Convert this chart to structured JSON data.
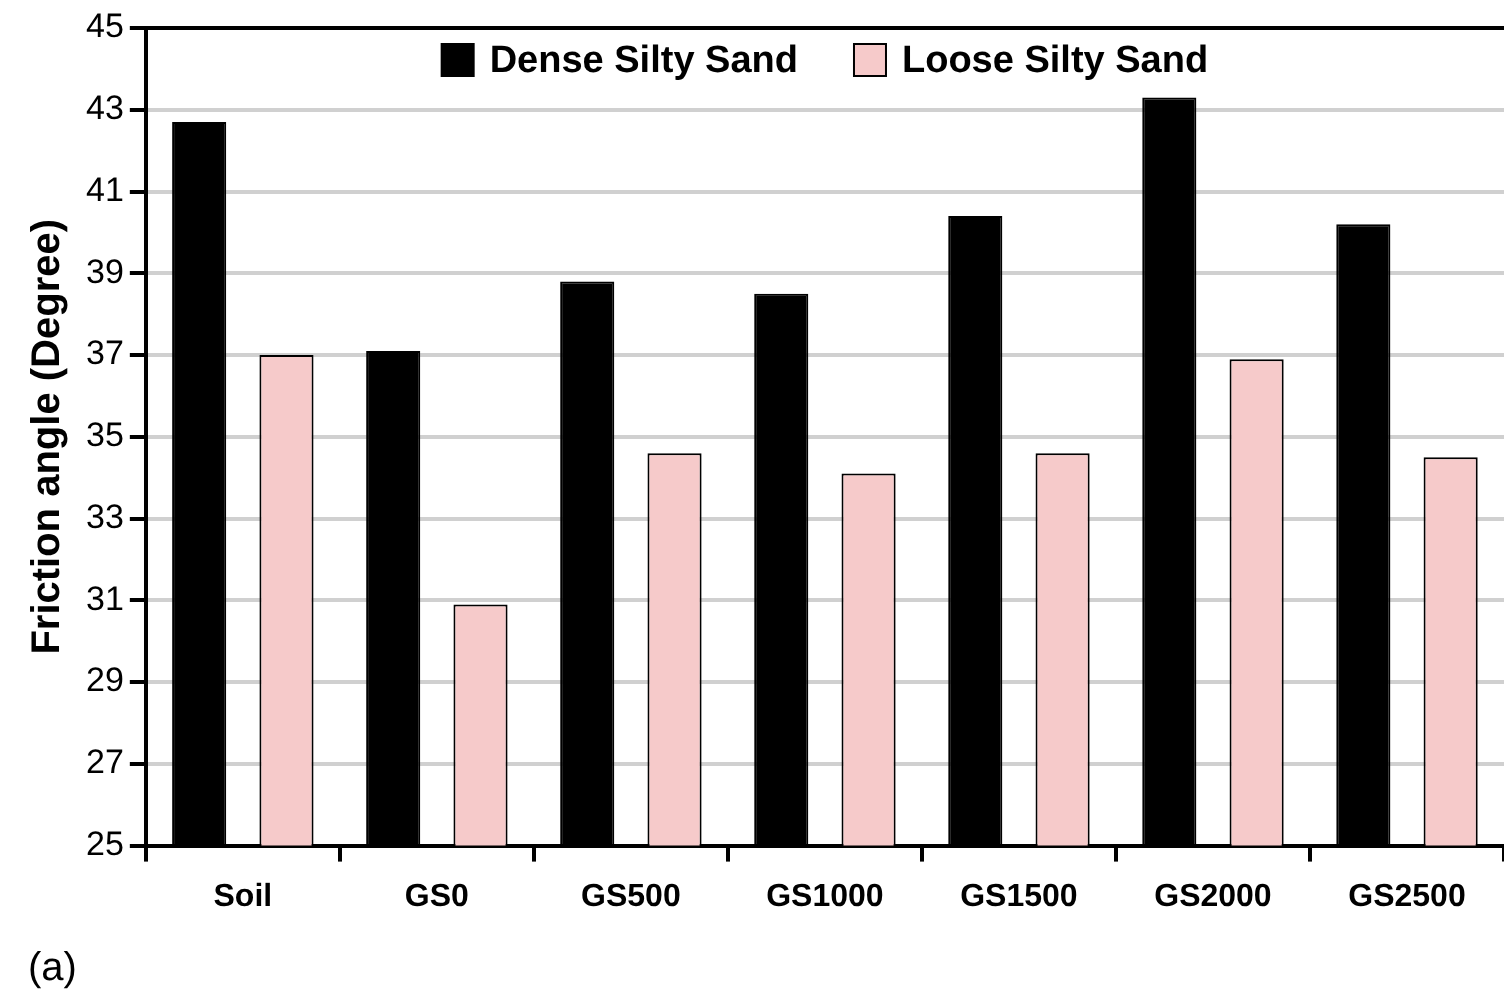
{
  "chart_data": {
    "type": "bar",
    "ylabel": "Friction angle (Degree)",
    "categories": [
      "Soil",
      "GS0",
      "GS500",
      "GS1000",
      "GS1500",
      "GS2000",
      "GS2500"
    ],
    "series": [
      {
        "name": "Dense Silty Sand",
        "color": "#000000",
        "values": [
          42.7,
          37.1,
          38.8,
          38.5,
          40.4,
          43.3,
          40.2
        ]
      },
      {
        "name": "Loose Silty Sand",
        "color": "#f6caca",
        "values": [
          37.0,
          30.9,
          34.6,
          34.1,
          34.6,
          36.9,
          34.5
        ]
      }
    ],
    "ylim": [
      25,
      45
    ],
    "yticks": [
      25,
      27,
      29,
      31,
      33,
      35,
      37,
      39,
      41,
      43,
      45
    ],
    "grid": "y",
    "legend": "top",
    "annotations": [
      "(a)"
    ]
  }
}
